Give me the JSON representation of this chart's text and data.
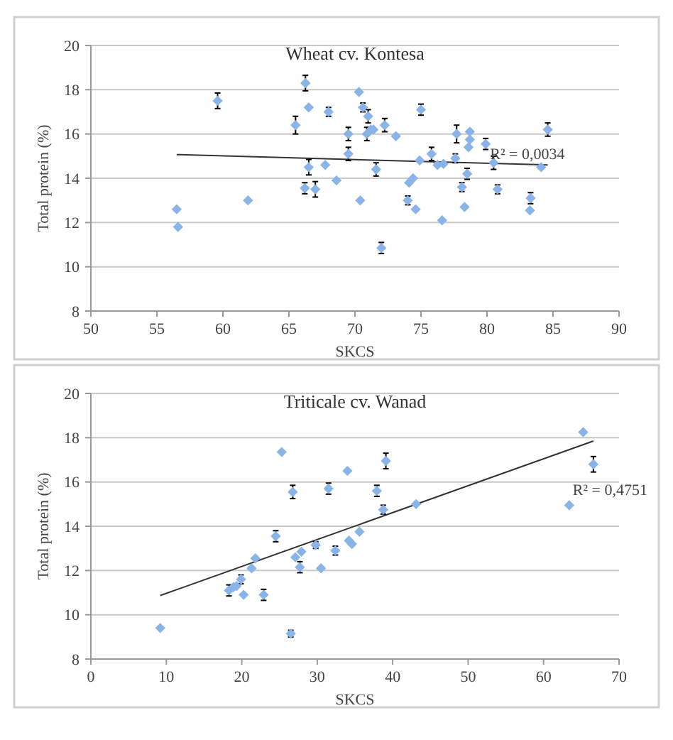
{
  "chart_data": [
    {
      "type": "scatter",
      "title": "Wheat cv. Kontesa",
      "xlabel": "SKCS",
      "ylabel": "Total protein (%)",
      "xlim": [
        50,
        90
      ],
      "xticks": [
        50,
        55,
        60,
        65,
        70,
        75,
        80,
        85,
        90
      ],
      "ylim": [
        8,
        20
      ],
      "yticks": [
        8,
        10,
        12,
        14,
        16,
        18,
        20
      ],
      "grid": "y",
      "series": [
        {
          "type": "scatter",
          "marker": "diamond",
          "color": "#8ab4e8",
          "x": [
            56.5,
            56.6,
            59.6,
            61.9,
            65.5,
            66.25,
            66.5,
            66.2,
            66.5,
            67.0,
            67.75,
            68.0,
            68.6,
            69.5,
            69.5,
            70.4,
            70.3,
            70.6,
            70.9,
            71.0,
            71.2,
            71.4,
            71.6,
            72.0,
            72.25,
            73.1,
            74.1,
            74.0,
            74.4,
            74.6,
            74.9,
            75.0,
            75.8,
            76.25,
            76.6,
            76.7,
            77.6,
            77.7,
            78.1,
            78.3,
            78.5,
            78.6,
            78.7,
            78.7,
            79.9,
            80.5,
            80.8,
            83.25,
            83.3,
            84.1,
            84.6
          ],
          "values": [
            12.6,
            11.8,
            17.5,
            13.0,
            16.4,
            18.3,
            17.2,
            13.55,
            14.5,
            13.5,
            14.6,
            17.0,
            13.9,
            15.1,
            16.0,
            13.0,
            17.9,
            17.2,
            16.0,
            16.8,
            16.2,
            16.2,
            14.4,
            10.85,
            16.4,
            15.9,
            13.8,
            13.0,
            14.0,
            12.6,
            14.8,
            17.1,
            15.1,
            14.6,
            12.1,
            14.65,
            14.9,
            16.0,
            13.6,
            12.7,
            14.2,
            15.4,
            15.75,
            16.1,
            15.55,
            14.7,
            13.5,
            12.55,
            13.1,
            14.5,
            16.2
          ],
          "errors": [
            null,
            null,
            0.35,
            null,
            0.4,
            0.35,
            null,
            0.25,
            0.35,
            0.35,
            null,
            0.2,
            null,
            0.3,
            0.3,
            null,
            null,
            0.2,
            0.3,
            0.3,
            null,
            null,
            0.3,
            0.25,
            0.3,
            null,
            null,
            0.2,
            null,
            null,
            null,
            0.25,
            0.3,
            null,
            null,
            null,
            0.2,
            0.4,
            0.2,
            null,
            0.25,
            null,
            null,
            null,
            0.25,
            0.3,
            0.2,
            null,
            0.25,
            null,
            0.3
          ]
        },
        {
          "type": "line",
          "color": "#333333",
          "x": [
            56.5,
            84.6
          ],
          "values": [
            15.07,
            14.6
          ]
        }
      ],
      "annotations": [
        "R² = 0,0034"
      ]
    },
    {
      "type": "scatter",
      "title": "Triticale cv. Wanad",
      "xlabel": "SKCS",
      "ylabel": "Total protein (%)",
      "xlim": [
        0,
        70
      ],
      "xticks": [
        0,
        10,
        20,
        30,
        40,
        50,
        60,
        70
      ],
      "ylim": [
        8,
        20
      ],
      "yticks": [
        8,
        10,
        12,
        14,
        16,
        18,
        20
      ],
      "grid": "y",
      "series": [
        {
          "type": "scatter",
          "marker": "diamond",
          "color": "#8ab4e8",
          "x": [
            9.2,
            18.3,
            18.9,
            19.3,
            19.9,
            20.25,
            21.3,
            21.8,
            22.9,
            24.5,
            25.3,
            26.5,
            26.75,
            27.1,
            27.7,
            27.9,
            29.8,
            30.5,
            31.5,
            32.4,
            34.0,
            34.2,
            34.6,
            35.6,
            37.9,
            38.75,
            39.1,
            43.1,
            63.4,
            65.25,
            66.6
          ],
          "values": [
            9.4,
            11.1,
            11.25,
            11.3,
            11.6,
            10.9,
            12.1,
            12.55,
            10.9,
            13.55,
            17.35,
            9.15,
            15.55,
            12.6,
            12.15,
            12.85,
            13.15,
            12.1,
            15.7,
            12.9,
            16.5,
            13.35,
            13.2,
            13.75,
            15.6,
            14.75,
            16.95,
            15.0,
            14.95,
            18.25,
            16.8
          ],
          "errors": [
            null,
            0.25,
            null,
            null,
            0.2,
            null,
            null,
            null,
            0.25,
            0.25,
            null,
            0.15,
            0.3,
            null,
            0.25,
            null,
            0.15,
            null,
            0.25,
            0.2,
            null,
            null,
            null,
            null,
            0.25,
            0.2,
            0.35,
            null,
            null,
            null,
            0.35
          ]
        },
        {
          "type": "line",
          "color": "#333333",
          "x": [
            9.2,
            66.6
          ],
          "values": [
            10.87,
            17.85
          ]
        }
      ],
      "annotations": [
        "R² = 0,4751"
      ]
    }
  ]
}
